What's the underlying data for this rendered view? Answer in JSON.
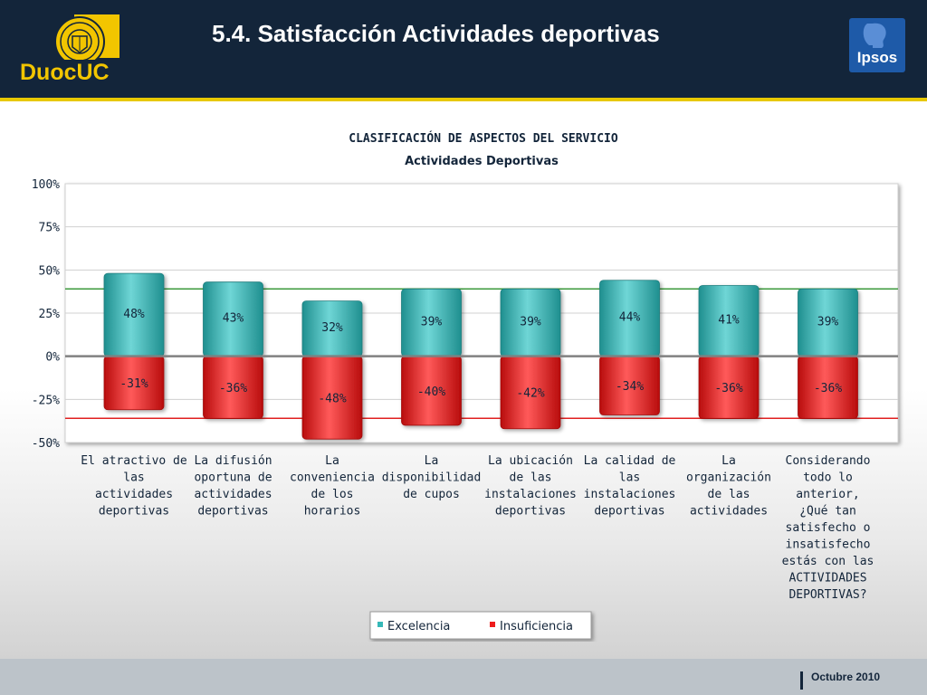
{
  "header": {
    "title": "5.4. Satisfacción Actividades deportivas",
    "logo_left": "DuocUC",
    "logo_right": "Ipsos"
  },
  "footer": {
    "date": "Octubre 2010"
  },
  "colors": {
    "header_bg": "#13253a",
    "accent": "#e8c800",
    "excelencia": "#35b8b8",
    "insuficiencia": "#ee1c1c",
    "ref_line_positive": "#3c9a3c",
    "ref_line_negative": "#e02020"
  },
  "chart_data": {
    "type": "bar",
    "title": "CLASIFICACIÓN DE ASPECTOS DEL SERVICIO",
    "subtitle": "Actividades Deportivas",
    "ylim": [
      -50,
      100
    ],
    "yticks": [
      100,
      75,
      50,
      25,
      0,
      -25,
      -50
    ],
    "ytick_labels": [
      "100%",
      "75%",
      "50%",
      "25%",
      "0%",
      "-25%",
      "-50%"
    ],
    "grid": true,
    "legend_position": "bottom",
    "reference_lines": [
      {
        "value": 39,
        "series": "Excelencia"
      },
      {
        "value": -36,
        "series": "Insuficiencia"
      }
    ],
    "categories": [
      [
        "El atractivo de",
        "las",
        "actividades",
        "deportivas"
      ],
      [
        "La difusión",
        "oportuna de",
        "actividades",
        "deportivas"
      ],
      [
        "La",
        "conveniencia",
        "de los",
        "horarios"
      ],
      [
        "La",
        "disponibilidad",
        "de cupos"
      ],
      [
        "La ubicación",
        "de las",
        "instalaciones",
        "deportivas"
      ],
      [
        "La calidad de",
        "las",
        "instalaciones",
        "deportivas"
      ],
      [
        "La",
        "organización",
        "de las",
        "actividades"
      ],
      [
        "Considerando",
        "todo lo",
        "anterior,",
        "¿Qué tan",
        "satisfecho o",
        "insatisfecho",
        "estás con las",
        "ACTIVIDADES",
        "DEPORTIVAS?"
      ]
    ],
    "series": [
      {
        "name": "Excelencia",
        "values": [
          48,
          43,
          32,
          39,
          39,
          44,
          41,
          39
        ],
        "labels": [
          "48%",
          "43%",
          "32%",
          "39%",
          "39%",
          "44%",
          "41%",
          "39%"
        ]
      },
      {
        "name": "Insuficiencia",
        "values": [
          -31,
          -36,
          -48,
          -40,
          -42,
          -34,
          -36,
          -36
        ],
        "labels": [
          "-31%",
          "-36%",
          "-48%",
          "-40%",
          "-42%",
          "-34%",
          "-36%",
          "-36%"
        ]
      }
    ]
  }
}
